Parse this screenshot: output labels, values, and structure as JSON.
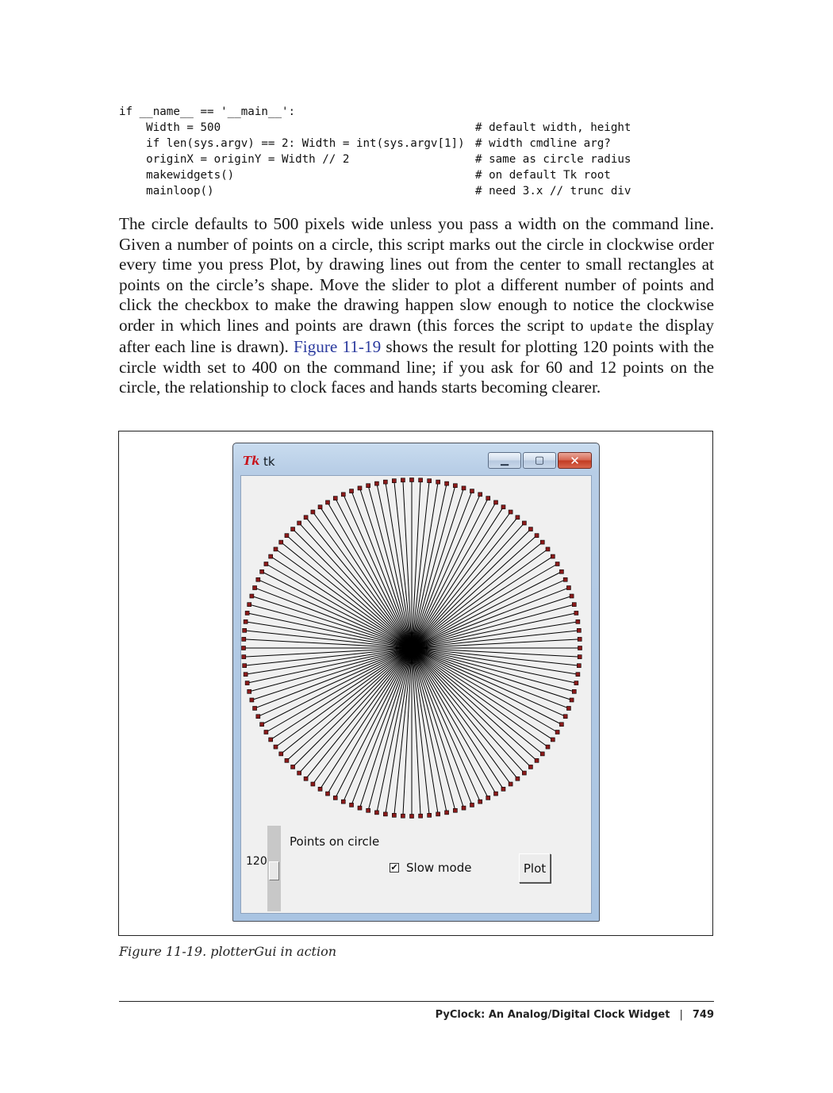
{
  "code": {
    "lines": [
      {
        "code": "if __name__ == '__main__':",
        "comment": ""
      },
      {
        "code": "    Width = 500",
        "comment": "# default width, height"
      },
      {
        "code": "    if len(sys.argv) == 2: Width = int(sys.argv[1])",
        "comment": "# width cmdline arg?"
      },
      {
        "code": "    originX = originY = Width // 2",
        "comment": "# same as circle radius"
      },
      {
        "code": "    makewidgets()",
        "comment": "# on default Tk root"
      },
      {
        "code": "    mainloop()",
        "comment": "# need 3.x // trunc div"
      }
    ]
  },
  "paragraph": {
    "part1": "The circle defaults to 500 pixels wide unless you pass a width on the command line. Given a number of points on a circle, this script marks out the circle in clockwise order every time you press Plot, by drawing lines out from the center to small rectangles at points on the circle’s shape. Move the slider to plot a different number of points and click the checkbox to make the drawing happen slow enough to notice the clockwise order in which lines and points are drawn (this forces the script to ",
    "code_word": "update",
    "part2": " the display after each line is drawn). ",
    "xref": "Figure 11-19",
    "part3": " shows the result for plotting 120 points with the circle width set to 400 on the command line; if you ask for 60 and 12 points on the circle, the relationship to clock faces and hands starts becoming clearer."
  },
  "window": {
    "icon_text": "Tk",
    "title": "tk",
    "minimize_glyph": "▁",
    "maximize_glyph": "▢",
    "close_glyph": "✕"
  },
  "plot": {
    "points": 120,
    "line_color": "#000000",
    "marker_color": "#8b1a1a"
  },
  "controls": {
    "scale_label": "Points on circle",
    "scale_value": "120",
    "checkbox_label": "Slow mode",
    "checkbox_checked": true,
    "plot_button": "Plot"
  },
  "caption": "Figure 11-19. plotterGui in action",
  "footer": {
    "chapter_title": "PyClock: An Analog/Digital Clock Widget",
    "separator": "|",
    "page_number": "749"
  }
}
